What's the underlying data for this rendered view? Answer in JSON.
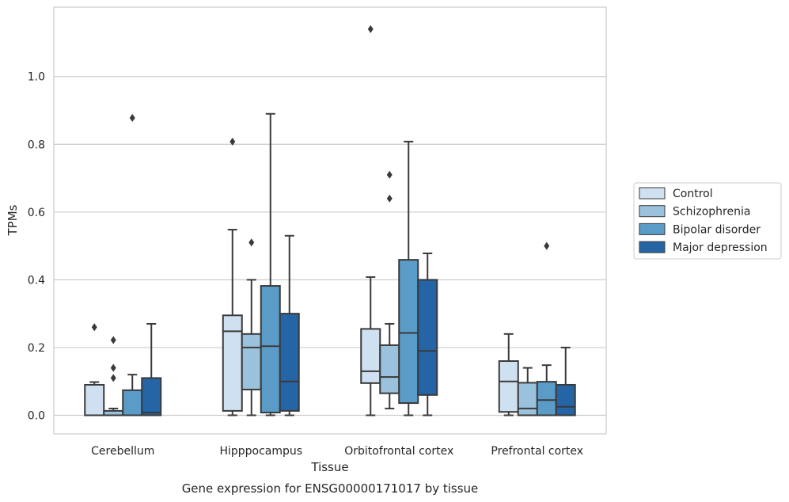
{
  "chart_data": {
    "type": "box",
    "title": "",
    "caption": "Gene expression for ENSG00000171017 by tissue",
    "xlabel": "Tissue",
    "ylabel": "TPMs",
    "ylim": [
      -0.055,
      1.205
    ],
    "yticks": [
      0.0,
      0.2,
      0.4,
      0.6,
      0.8,
      1.0
    ],
    "ytick_labels": [
      "0.0",
      "0.2",
      "0.4",
      "0.6",
      "0.8",
      "1.0"
    ],
    "grid": "horizontal",
    "legend_position": "right",
    "categories": [
      "Cerebellum",
      "Hipppocampus",
      "Orbitofrontal cortex",
      "Prefrontal cortex"
    ],
    "series": [
      {
        "name": "Control",
        "color": "#cfe0f0",
        "boxes": [
          {
            "whislo": 0.0,
            "q1": 0.0,
            "med": 0.0,
            "q3": 0.09,
            "whishi": 0.098,
            "fliers": [
              0.26
            ]
          },
          {
            "whislo": 0.0,
            "q1": 0.013,
            "med": 0.248,
            "q3": 0.295,
            "whishi": 0.548,
            "fliers": [
              0.808
            ]
          },
          {
            "whislo": 0.0,
            "q1": 0.095,
            "med": 0.13,
            "q3": 0.255,
            "whishi": 0.408,
            "fliers": [
              1.14
            ]
          },
          {
            "whislo": 0.0,
            "q1": 0.01,
            "med": 0.1,
            "q3": 0.16,
            "whishi": 0.24,
            "fliers": []
          }
        ]
      },
      {
        "name": "Schizophrenia",
        "color": "#9ac2dc",
        "boxes": [
          {
            "whislo": 0.0,
            "q1": 0.0,
            "med": 0.0,
            "q3": 0.013,
            "whishi": 0.02,
            "fliers": [
              0.11,
              0.14,
              0.222
            ]
          },
          {
            "whislo": 0.0,
            "q1": 0.076,
            "med": 0.2,
            "q3": 0.24,
            "whishi": 0.4,
            "fliers": [
              0.51
            ]
          },
          {
            "whislo": 0.02,
            "q1": 0.065,
            "med": 0.113,
            "q3": 0.207,
            "whishi": 0.27,
            "fliers": [
              0.64,
              0.71
            ]
          },
          {
            "whislo": 0.0,
            "q1": 0.0,
            "med": 0.02,
            "q3": 0.096,
            "whishi": 0.14,
            "fliers": []
          }
        ]
      },
      {
        "name": "Bipolar disorder",
        "color": "#5a9bc7",
        "boxes": [
          {
            "whislo": 0.0,
            "q1": 0.0,
            "med": 0.0,
            "q3": 0.074,
            "whishi": 0.12,
            "fliers": [
              0.878
            ]
          },
          {
            "whislo": 0.0,
            "q1": 0.008,
            "med": 0.204,
            "q3": 0.382,
            "whishi": 0.89,
            "fliers": []
          },
          {
            "whislo": 0.0,
            "q1": 0.036,
            "med": 0.243,
            "q3": 0.459,
            "whishi": 0.808,
            "fliers": []
          },
          {
            "whislo": 0.0,
            "q1": 0.0,
            "med": 0.045,
            "q3": 0.099,
            "whishi": 0.148,
            "fliers": [
              0.5
            ]
          }
        ]
      },
      {
        "name": "Major depression",
        "color": "#2565a5",
        "boxes": [
          {
            "whislo": 0.0,
            "q1": 0.0,
            "med": 0.008,
            "q3": 0.11,
            "whishi": 0.27,
            "fliers": []
          },
          {
            "whislo": 0.0,
            "q1": 0.013,
            "med": 0.1,
            "q3": 0.3,
            "whishi": 0.53,
            "fliers": []
          },
          {
            "whislo": 0.0,
            "q1": 0.06,
            "med": 0.19,
            "q3": 0.4,
            "whishi": 0.478,
            "fliers": []
          },
          {
            "whislo": 0.0,
            "q1": 0.0,
            "med": 0.025,
            "q3": 0.09,
            "whishi": 0.2,
            "fliers": []
          }
        ]
      }
    ]
  }
}
